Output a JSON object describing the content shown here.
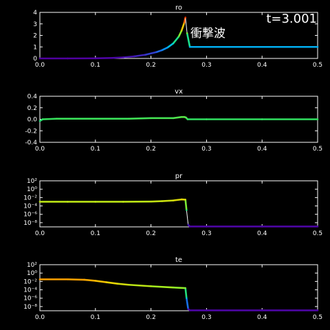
{
  "annotations": {
    "time": "t=3.001",
    "shock_label": "衝撃波"
  },
  "colors": {
    "background": "#000000",
    "axes": "#ffffff",
    "colormap": [
      "#5000a0",
      "#3040d0",
      "#00a0ff",
      "#00e0c0",
      "#30e060",
      "#a0f020",
      "#f0d000",
      "#ff8000",
      "#ff2000"
    ]
  },
  "chart_data": [
    {
      "type": "line",
      "title": "ro",
      "xlim": [
        0,
        0.5
      ],
      "ylim": [
        0,
        4
      ],
      "yscale": "linear",
      "xticks": [
        "0.0",
        "0.1",
        "0.2",
        "0.3",
        "0.4",
        "0.5"
      ],
      "yticks": [
        {
          "v": 0,
          "label": "0"
        },
        {
          "v": 1,
          "label": "1"
        },
        {
          "v": 2,
          "label": "2"
        },
        {
          "v": 3,
          "label": "3"
        },
        {
          "v": 4,
          "label": "4"
        }
      ],
      "x": [
        0,
        0.05,
        0.1,
        0.13,
        0.15,
        0.17,
        0.19,
        0.21,
        0.22,
        0.23,
        0.24,
        0.25,
        0.255,
        0.26,
        0.262,
        0.265,
        0.27,
        0.3,
        0.4,
        0.5
      ],
      "y": [
        0.0,
        0.0,
        0.01,
        0.04,
        0.09,
        0.18,
        0.32,
        0.55,
        0.72,
        0.95,
        1.3,
        1.9,
        2.4,
        3.1,
        3.55,
        2.2,
        1.0,
        1.0,
        1.0,
        1.0
      ],
      "color_range": [
        0,
        3.6
      ]
    },
    {
      "type": "line",
      "title": "vx",
      "xlim": [
        0,
        0.5
      ],
      "ylim": [
        -0.4,
        0.4
      ],
      "yscale": "linear",
      "xticks": [
        "0.0",
        "0.1",
        "0.2",
        "0.3",
        "0.4",
        "0.5"
      ],
      "yticks": [
        {
          "v": -0.4,
          "label": "-0.4"
        },
        {
          "v": -0.2,
          "label": "-0.2"
        },
        {
          "v": 0,
          "label": "0.0"
        },
        {
          "v": 0.2,
          "label": "0.2"
        },
        {
          "v": 0.4,
          "label": "0.4"
        }
      ],
      "x": [
        0,
        0.005,
        0.03,
        0.16,
        0.2,
        0.24,
        0.255,
        0.26,
        0.263,
        0.266,
        0.3,
        0.4,
        0.5
      ],
      "y": [
        -0.03,
        0.0,
        0.01,
        0.01,
        0.02,
        0.02,
        0.04,
        0.04,
        0.03,
        0.0,
        0.0,
        0.0,
        0.0
      ],
      "color_range": [
        -0.4,
        0.4
      ]
    },
    {
      "type": "line",
      "title": "pr",
      "xlim": [
        0,
        0.5
      ],
      "ylim": [
        -9,
        2
      ],
      "yscale": "log",
      "xticks": [
        "0.0",
        "0.1",
        "0.2",
        "0.3",
        "0.4",
        "0.5"
      ],
      "yticks": [
        {
          "v": 2,
          "label": "10²"
        },
        {
          "v": 0,
          "label": "10⁰"
        },
        {
          "v": -2,
          "label": "10⁻²"
        },
        {
          "v": -4,
          "label": "10⁻⁴"
        },
        {
          "v": -6,
          "label": "10⁻⁶"
        },
        {
          "v": -8,
          "label": "10⁻⁸"
        }
      ],
      "x": [
        0,
        0.05,
        0.1,
        0.15,
        0.2,
        0.22,
        0.24,
        0.255,
        0.262,
        0.264,
        0.267,
        0.27,
        0.3,
        0.4,
        0.5
      ],
      "y": [
        -3.0,
        -3.0,
        -3.0,
        -3.0,
        -2.95,
        -2.85,
        -2.7,
        -2.45,
        -2.5,
        -5.0,
        -8.5,
        -8.9,
        -8.9,
        -8.9,
        -8.9
      ],
      "color_range": [
        -9,
        0
      ]
    },
    {
      "type": "line",
      "title": "te",
      "xlim": [
        0,
        0.5
      ],
      "ylim": [
        -9,
        2
      ],
      "yscale": "log",
      "xticks": [
        "0.0",
        "0.1",
        "0.2",
        "0.3",
        "0.4",
        "0.5"
      ],
      "yticks": [
        {
          "v": 2,
          "label": "10²"
        },
        {
          "v": 0,
          "label": "10⁰"
        },
        {
          "v": -2,
          "label": "10⁻²"
        },
        {
          "v": -4,
          "label": "10⁻⁴"
        },
        {
          "v": -6,
          "label": "10⁻⁶"
        },
        {
          "v": -8,
          "label": "10⁻⁸"
        }
      ],
      "x": [
        0,
        0.05,
        0.08,
        0.1,
        0.12,
        0.14,
        0.16,
        0.2,
        0.24,
        0.262,
        0.264,
        0.267,
        0.27,
        0.3,
        0.4,
        0.5
      ],
      "y": [
        -1.5,
        -1.5,
        -1.6,
        -1.85,
        -2.2,
        -2.55,
        -2.8,
        -3.15,
        -3.45,
        -3.6,
        -6.0,
        -8.6,
        -8.9,
        -8.9,
        -8.9,
        -8.9
      ],
      "color_range": [
        -9,
        0
      ]
    }
  ]
}
